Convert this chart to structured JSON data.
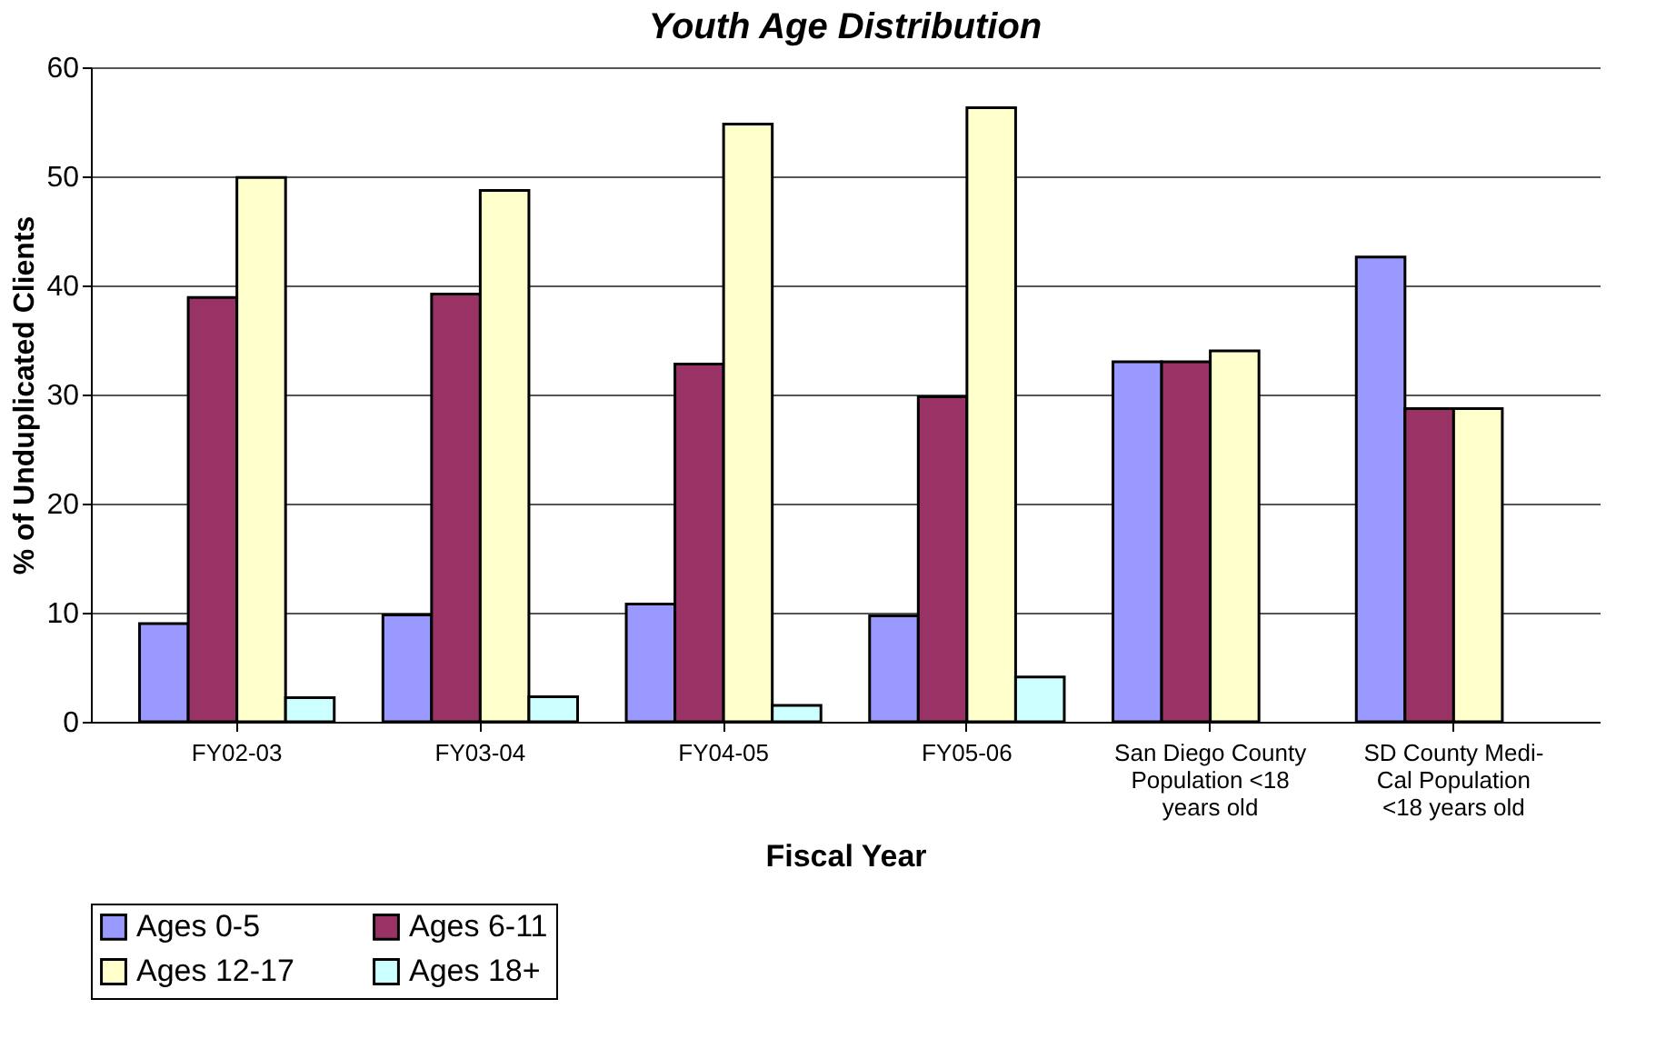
{
  "chart_data": {
    "type": "bar",
    "title": "Youth Age Distribution",
    "xlabel": "Fiscal Year",
    "ylabel": "% of Unduplicated Clients",
    "categories": [
      "FY02-03",
      "FY03-04",
      "FY04-05",
      "FY05-06",
      "San Diego County Population <18 years old",
      "SD County Medi-Cal Population <18 years old"
    ],
    "series": [
      {
        "name": "Ages 0-5",
        "color": "#9999ff",
        "values": [
          9.0,
          9.8,
          10.8,
          9.7,
          33.0,
          42.6
        ]
      },
      {
        "name": "Ages 6-11",
        "color": "#993366",
        "values": [
          38.9,
          39.2,
          32.8,
          29.8,
          33.0,
          28.7
        ]
      },
      {
        "name": "Ages 12-17",
        "color": "#ffffcc",
        "values": [
          49.9,
          48.7,
          54.8,
          56.3,
          34.0,
          28.7
        ]
      },
      {
        "name": "Ages 18+",
        "color": "#ccffff",
        "values": [
          2.2,
          2.3,
          1.5,
          4.1,
          null,
          null
        ]
      }
    ],
    "ylim": [
      0,
      60
    ],
    "yticks": [
      0,
      10,
      20,
      30,
      40,
      50,
      60
    ],
    "grid": "y",
    "legend": "bottom left"
  }
}
